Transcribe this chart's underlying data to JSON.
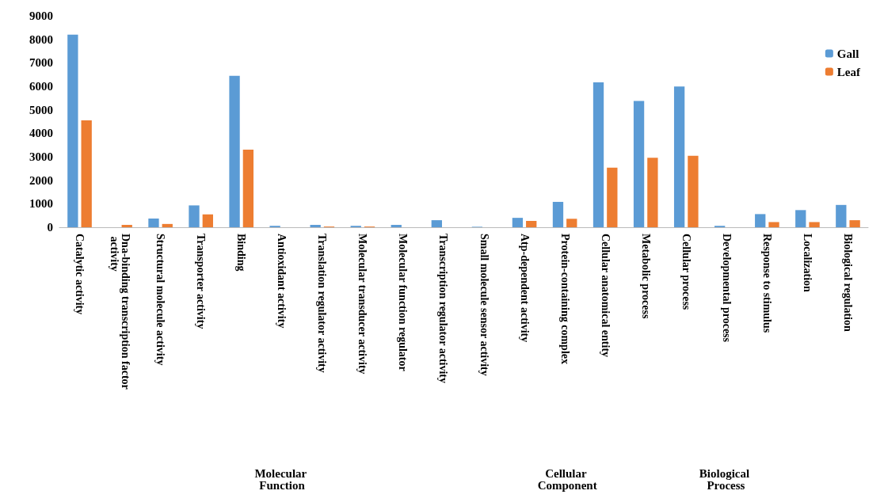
{
  "chart_data": {
    "type": "bar",
    "categories": [
      "Catalytic activity",
      "Dna-binding transcription factor activity",
      "Structural molecule activity",
      "Transporter activity",
      "Binding",
      "Antioxidant activity",
      "Translation regulator activity",
      "Molecular transducer activity",
      "Molecular function regulator",
      "Transcription regulator activity",
      "Small molecule sensor activity",
      "Atp-dependent activity",
      "Protein-containing complex",
      "Cellular anatomical entity",
      "Metabolic process",
      "Cellular process",
      "Developmental process",
      "Response to stimulus",
      "Localization",
      "Biological regulation"
    ],
    "series": [
      {
        "name": "Gall",
        "color": "#5b9bd5",
        "values": [
          8200,
          0,
          370,
          930,
          6450,
          60,
          100,
          60,
          100,
          300,
          20,
          400,
          1080,
          6170,
          5380,
          5990,
          60,
          560,
          730,
          950
        ]
      },
      {
        "name": "Leaf",
        "color": "#ed7d31",
        "values": [
          4550,
          100,
          140,
          550,
          3300,
          0,
          30,
          30,
          0,
          0,
          0,
          270,
          360,
          2540,
          2960,
          3040,
          0,
          220,
          220,
          300
        ]
      }
    ],
    "ylim": [
      0,
      9000
    ],
    "yticks": [
      0,
      1000,
      2000,
      3000,
      4000,
      5000,
      6000,
      7000,
      8000,
      9000
    ],
    "grid": false,
    "legend": "top right",
    "annotations": [
      "Molecular Function",
      "Cellular Component",
      "Biological Process"
    ]
  }
}
